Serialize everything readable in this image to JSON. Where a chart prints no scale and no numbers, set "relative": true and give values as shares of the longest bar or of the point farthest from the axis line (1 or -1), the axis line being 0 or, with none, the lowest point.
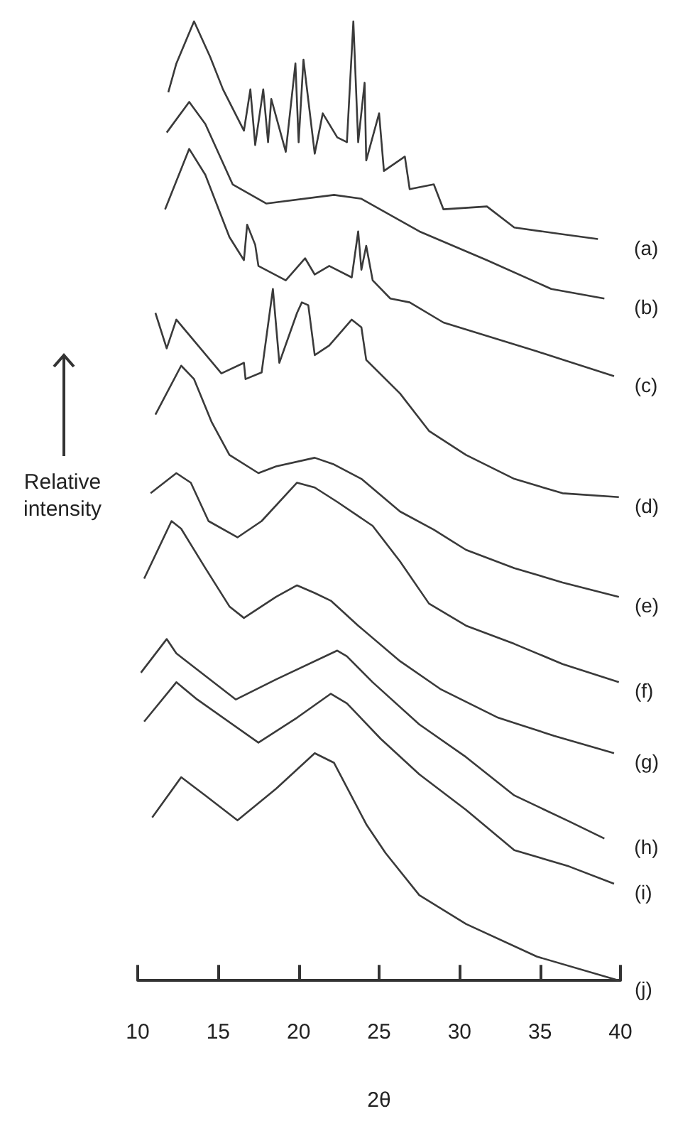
{
  "chart_data": {
    "type": "line",
    "xlabel": "2θ",
    "ylabel": "Relative intensity",
    "relative": true,
    "xlim": [
      10,
      40
    ],
    "xticks": [
      10,
      15,
      20,
      25,
      30,
      35,
      40
    ],
    "series": [
      {
        "name": "(a)",
        "color": "#3a3a3a",
        "x": [
          11.9,
          12.4,
          13.5,
          14.5,
          15.3,
          16.6,
          17.0,
          17.3,
          17.8,
          18.1,
          18.3,
          19.2,
          19.8,
          20.0,
          20.3,
          21.0,
          21.5,
          22.4,
          23.0,
          23.4,
          23.7,
          24.1,
          24.2,
          25.0,
          25.3,
          26.6,
          26.9,
          28.4,
          29.0,
          31.7,
          33.4,
          36.4,
          38.6
        ],
        "values": [
          0.926,
          0.956,
          1,
          0.963,
          0.929,
          0.886,
          0.929,
          0.871,
          0.929,
          0.874,
          0.919,
          0.864,
          0.956,
          0.874,
          0.96,
          0.862,
          0.904,
          0.879,
          0.874,
          1,
          0.874,
          0.936,
          0.855,
          0.904,
          0.844,
          0.859,
          0.825,
          0.83,
          0.804,
          0.807,
          0.785,
          0.778,
          0.773
        ]
      },
      {
        "name": "(b)",
        "color": "#3a3a3a",
        "x": [
          11.8,
          13.2,
          14.2,
          15.9,
          18.0,
          22.2,
          23.9,
          27.5,
          31.7,
          35.7,
          39.0
        ],
        "values": [
          0.884,
          0.916,
          0.893,
          0.83,
          0.81,
          0.819,
          0.815,
          0.781,
          0.751,
          0.721,
          0.711
        ]
      },
      {
        "name": "(c)",
        "color": "#3a3a3a",
        "x": [
          11.7,
          13.2,
          14.2,
          15.7,
          16.6,
          16.8,
          17.3,
          17.5,
          19.2,
          20.4,
          21.0,
          21.9,
          23.3,
          23.7,
          23.9,
          24.2,
          24.6,
          25.7,
          26.9,
          29.0,
          31.9,
          34.8,
          39.6
        ],
        "values": [
          0.804,
          0.867,
          0.84,
          0.775,
          0.751,
          0.788,
          0.767,
          0.745,
          0.73,
          0.753,
          0.736,
          0.745,
          0.733,
          0.781,
          0.741,
          0.766,
          0.73,
          0.711,
          0.707,
          0.686,
          0.671,
          0.656,
          0.63
        ]
      },
      {
        "name": "(d)",
        "color": "#3a3a3a",
        "x": [
          11.1,
          11.8,
          12.4,
          13.5,
          15.2,
          16.6,
          16.7,
          17.7,
          18.4,
          18.8,
          19.9,
          20.2,
          20.6,
          21.0,
          21.9,
          23.3,
          23.9,
          24.2,
          26.3,
          28.1,
          30.4,
          33.4,
          36.4,
          39.9
        ],
        "values": [
          0.696,
          0.659,
          0.689,
          0.667,
          0.633,
          0.644,
          0.627,
          0.634,
          0.721,
          0.644,
          0.696,
          0.707,
          0.704,
          0.652,
          0.662,
          0.689,
          0.681,
          0.647,
          0.612,
          0.573,
          0.548,
          0.523,
          0.508,
          0.504
        ]
      },
      {
        "name": "(e)",
        "color": "#3a3a3a",
        "x": [
          11.1,
          12.7,
          13.5,
          14.6,
          15.7,
          17.5,
          18.6,
          21.0,
          22.2,
          23.9,
          26.3,
          28.4,
          30.4,
          33.4,
          36.4,
          39.9
        ],
        "values": [
          0.59,
          0.641,
          0.627,
          0.582,
          0.548,
          0.529,
          0.536,
          0.545,
          0.538,
          0.523,
          0.489,
          0.47,
          0.449,
          0.43,
          0.415,
          0.4
        ]
      },
      {
        "name": "(f)",
        "color": "#3a3a3a",
        "x": [
          10.8,
          12.4,
          13.3,
          14.4,
          16.2,
          17.7,
          19.9,
          21.0,
          22.4,
          24.6,
          26.3,
          28.1,
          30.4,
          33.4,
          36.4,
          39.9
        ],
        "values": [
          0.508,
          0.529,
          0.519,
          0.479,
          0.462,
          0.479,
          0.519,
          0.514,
          0.499,
          0.474,
          0.437,
          0.393,
          0.37,
          0.351,
          0.33,
          0.311
        ]
      },
      {
        "name": "(g)",
        "color": "#3a3a3a",
        "x": [
          10.4,
          12.1,
          12.7,
          14.2,
          15.7,
          16.6,
          18.6,
          19.9,
          21.0,
          22.0,
          23.7,
          26.3,
          28.8,
          32.4,
          35.9,
          39.6
        ],
        "values": [
          0.419,
          0.479,
          0.471,
          0.43,
          0.39,
          0.378,
          0.4,
          0.412,
          0.404,
          0.396,
          0.37,
          0.333,
          0.304,
          0.274,
          0.255,
          0.237
        ]
      },
      {
        "name": "(h)",
        "color": "#3a3a3a",
        "x": [
          10.2,
          11.8,
          12.4,
          16.1,
          18.6,
          22.4,
          23.0,
          24.6,
          27.5,
          30.4,
          33.4,
          36.8,
          39.0
        ],
        "values": [
          0.321,
          0.356,
          0.341,
          0.293,
          0.314,
          0.344,
          0.338,
          0.311,
          0.267,
          0.233,
          0.193,
          0.166,
          0.148
        ]
      },
      {
        "name": "(i)",
        "color": "#3a3a3a",
        "x": [
          10.4,
          12.4,
          13.7,
          17.5,
          19.9,
          22.0,
          23.0,
          25.1,
          27.5,
          30.4,
          33.4,
          36.8,
          39.6
        ],
        "values": [
          0.27,
          0.311,
          0.293,
          0.248,
          0.274,
          0.299,
          0.289,
          0.252,
          0.215,
          0.178,
          0.136,
          0.119,
          0.101
        ]
      },
      {
        "name": "(j)",
        "color": "#3a3a3a",
        "x": [
          10.9,
          12.7,
          14.2,
          16.2,
          18.6,
          21.0,
          22.2,
          24.2,
          25.4,
          27.5,
          30.4,
          34.8,
          39.9
        ],
        "values": [
          0.17,
          0.212,
          0.193,
          0.167,
          0.2,
          0.237,
          0.227,
          0.163,
          0.133,
          0.089,
          0.059,
          0.025,
          0
        ]
      }
    ]
  }
}
